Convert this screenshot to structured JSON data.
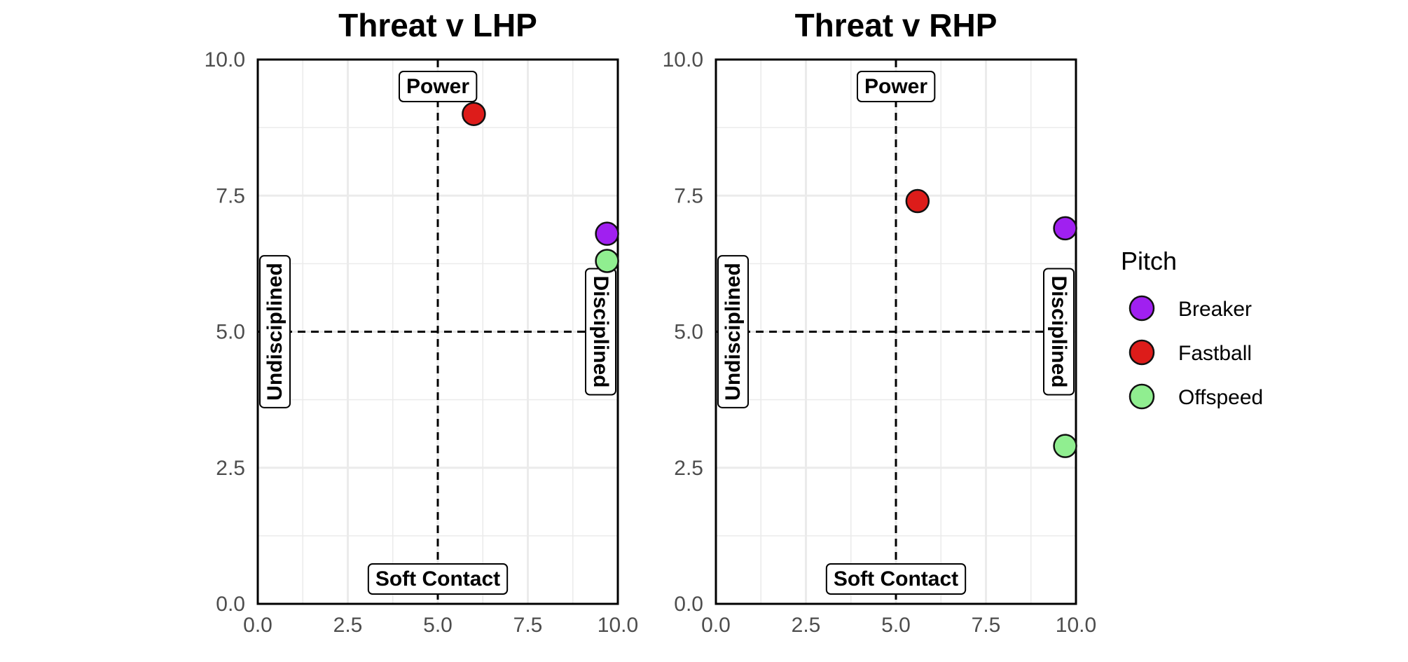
{
  "chart_data": [
    {
      "type": "scatter",
      "title": "Threat v LHP",
      "xlim": [
        0,
        10
      ],
      "ylim": [
        0,
        10
      ],
      "x_ticks": [
        "0.0",
        "2.5",
        "5.0",
        "7.5",
        "10.0"
      ],
      "y_ticks": [
        "0.0",
        "2.5",
        "5.0",
        "7.5",
        "10.0"
      ],
      "grid": true,
      "reference_lines": {
        "x": 5,
        "y": 5
      },
      "quadrant_labels": {
        "top": "Power",
        "bottom": "Soft Contact",
        "left": "Undisciplined",
        "right": "Disciplined"
      },
      "series": [
        {
          "name": "Fastball",
          "x": [
            6.0
          ],
          "y": [
            9.0
          ]
        },
        {
          "name": "Breaker",
          "x": [
            9.7
          ],
          "y": [
            6.8
          ]
        },
        {
          "name": "Offspeed",
          "x": [
            9.7
          ],
          "y": [
            6.3
          ]
        }
      ]
    },
    {
      "type": "scatter",
      "title": "Threat v RHP",
      "xlim": [
        0,
        10
      ],
      "ylim": [
        0,
        10
      ],
      "x_ticks": [
        "0.0",
        "2.5",
        "5.0",
        "7.5",
        "10.0"
      ],
      "y_ticks": [
        "0.0",
        "2.5",
        "5.0",
        "7.5",
        "10.0"
      ],
      "grid": true,
      "reference_lines": {
        "x": 5,
        "y": 5
      },
      "quadrant_labels": {
        "top": "Power",
        "bottom": "Soft Contact",
        "left": "Undisciplined",
        "right": "Disciplined"
      },
      "series": [
        {
          "name": "Fastball",
          "x": [
            5.6
          ],
          "y": [
            7.4
          ]
        },
        {
          "name": "Breaker",
          "x": [
            9.7
          ],
          "y": [
            6.9
          ]
        },
        {
          "name": "Offspeed",
          "x": [
            9.7
          ],
          "y": [
            2.9
          ]
        }
      ]
    }
  ],
  "legend": {
    "title": "Pitch",
    "placement": "right",
    "items": [
      {
        "name": "Breaker",
        "color": "#A020F0"
      },
      {
        "name": "Fastball",
        "color": "#DD1C1A"
      },
      {
        "name": "Offspeed",
        "color": "#90EE90"
      }
    ]
  }
}
